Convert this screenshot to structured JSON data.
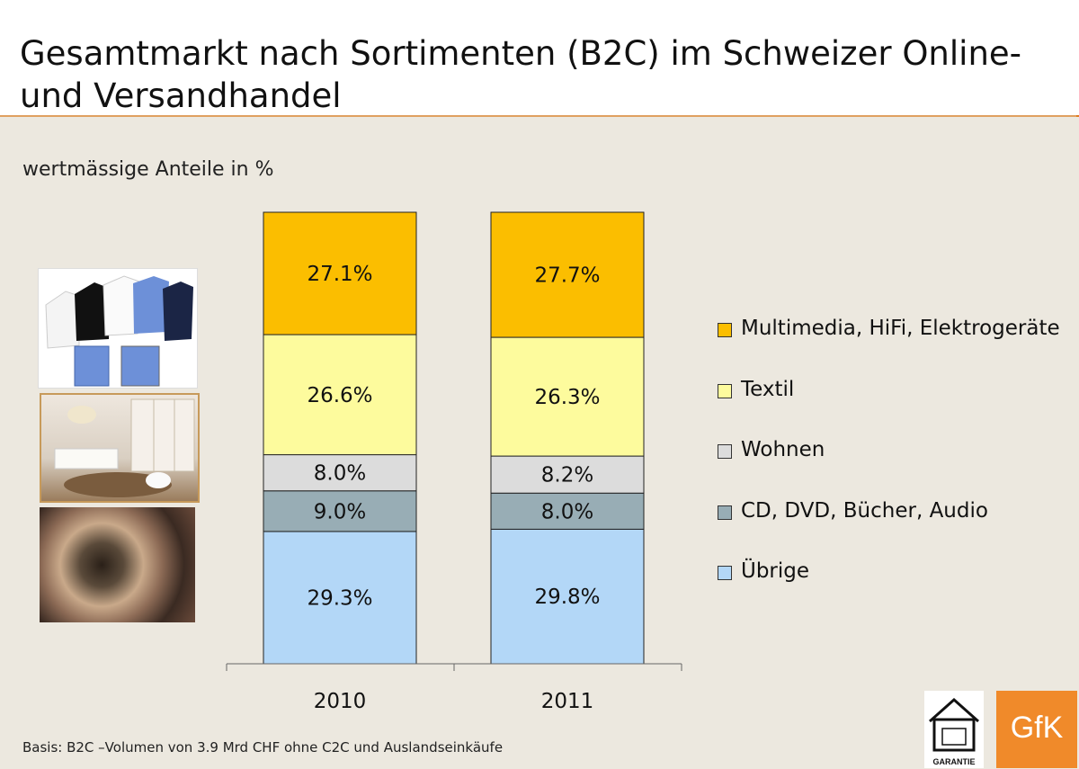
{
  "header": {
    "title": "Gesamtmarkt nach Sortimenten (B2C) im Schweizer Online- und Versandhandel"
  },
  "subtitle": "wertmässige Anteile in %",
  "footer": {
    "basis": "Basis: B2C –Volumen von 3.9 Mrd CHF ohne C2C und Auslandseinkäufe"
  },
  "logos": {
    "garantie_text": "GARANTIE",
    "gfk_text": "GfK"
  },
  "colors": {
    "background": "#ece8df",
    "accent": "#f08a2a"
  },
  "chart_data": {
    "type": "bar",
    "stacked": true,
    "normalized": true,
    "categories": [
      "2010",
      "2011"
    ],
    "series": [
      {
        "name": "Übrige",
        "values": [
          29.3,
          29.8
        ],
        "labels": [
          "29.3%",
          "29.8%"
        ],
        "color": "#b3d7f7"
      },
      {
        "name": "CD, DVD, Bücher, Audio",
        "values": [
          9.0,
          8.0
        ],
        "labels": [
          "9.0%",
          "8.0%"
        ],
        "color": "#98adb5"
      },
      {
        "name": "Wohnen",
        "values": [
          8.0,
          8.2
        ],
        "labels": [
          "8.0%",
          "8.2%"
        ],
        "color": "#dcdcdc"
      },
      {
        "name": "Textil",
        "values": [
          26.6,
          26.3
        ],
        "labels": [
          "26.6%",
          "26.3%"
        ],
        "color": "#fdfb9d"
      },
      {
        "name": "Multimedia, HiFi, Elektrogeräte",
        "values": [
          27.1,
          27.7
        ],
        "labels": [
          "27.1%",
          "27.7%"
        ],
        "color": "#fbbe00"
      }
    ],
    "legend_order": [
      "Multimedia, HiFi, Elektrogeräte",
      "Textil",
      "Wohnen",
      "CD, DVD, Bücher, Audio",
      "Übrige"
    ],
    "legend_position": "right",
    "grid": false
  }
}
